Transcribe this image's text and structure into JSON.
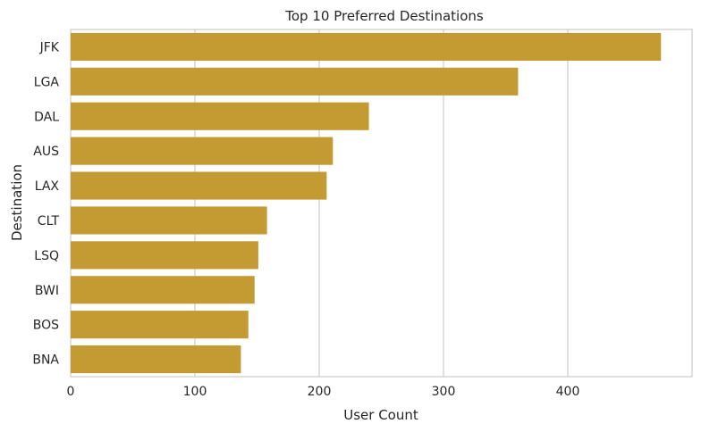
{
  "chart_data": {
    "type": "bar",
    "orientation": "horizontal",
    "title": "Top 10 Preferred Destinations",
    "xlabel": "User Count",
    "ylabel": "Destination",
    "categories": [
      "JFK",
      "LGA",
      "DAL",
      "AUS",
      "LAX",
      "CLT",
      "LSQ",
      "BWI",
      "BOS",
      "BNA"
    ],
    "values": [
      475,
      360,
      240,
      211,
      206,
      158,
      151,
      148,
      143,
      137
    ],
    "xlim": [
      0,
      500
    ],
    "xticks": [
      "0",
      "100",
      "200",
      "300",
      "400"
    ],
    "grid": "vertical",
    "bar_color": "#C49A33",
    "grid_color": "#CCCCCC",
    "spine_color": "#CCCCCC"
  }
}
